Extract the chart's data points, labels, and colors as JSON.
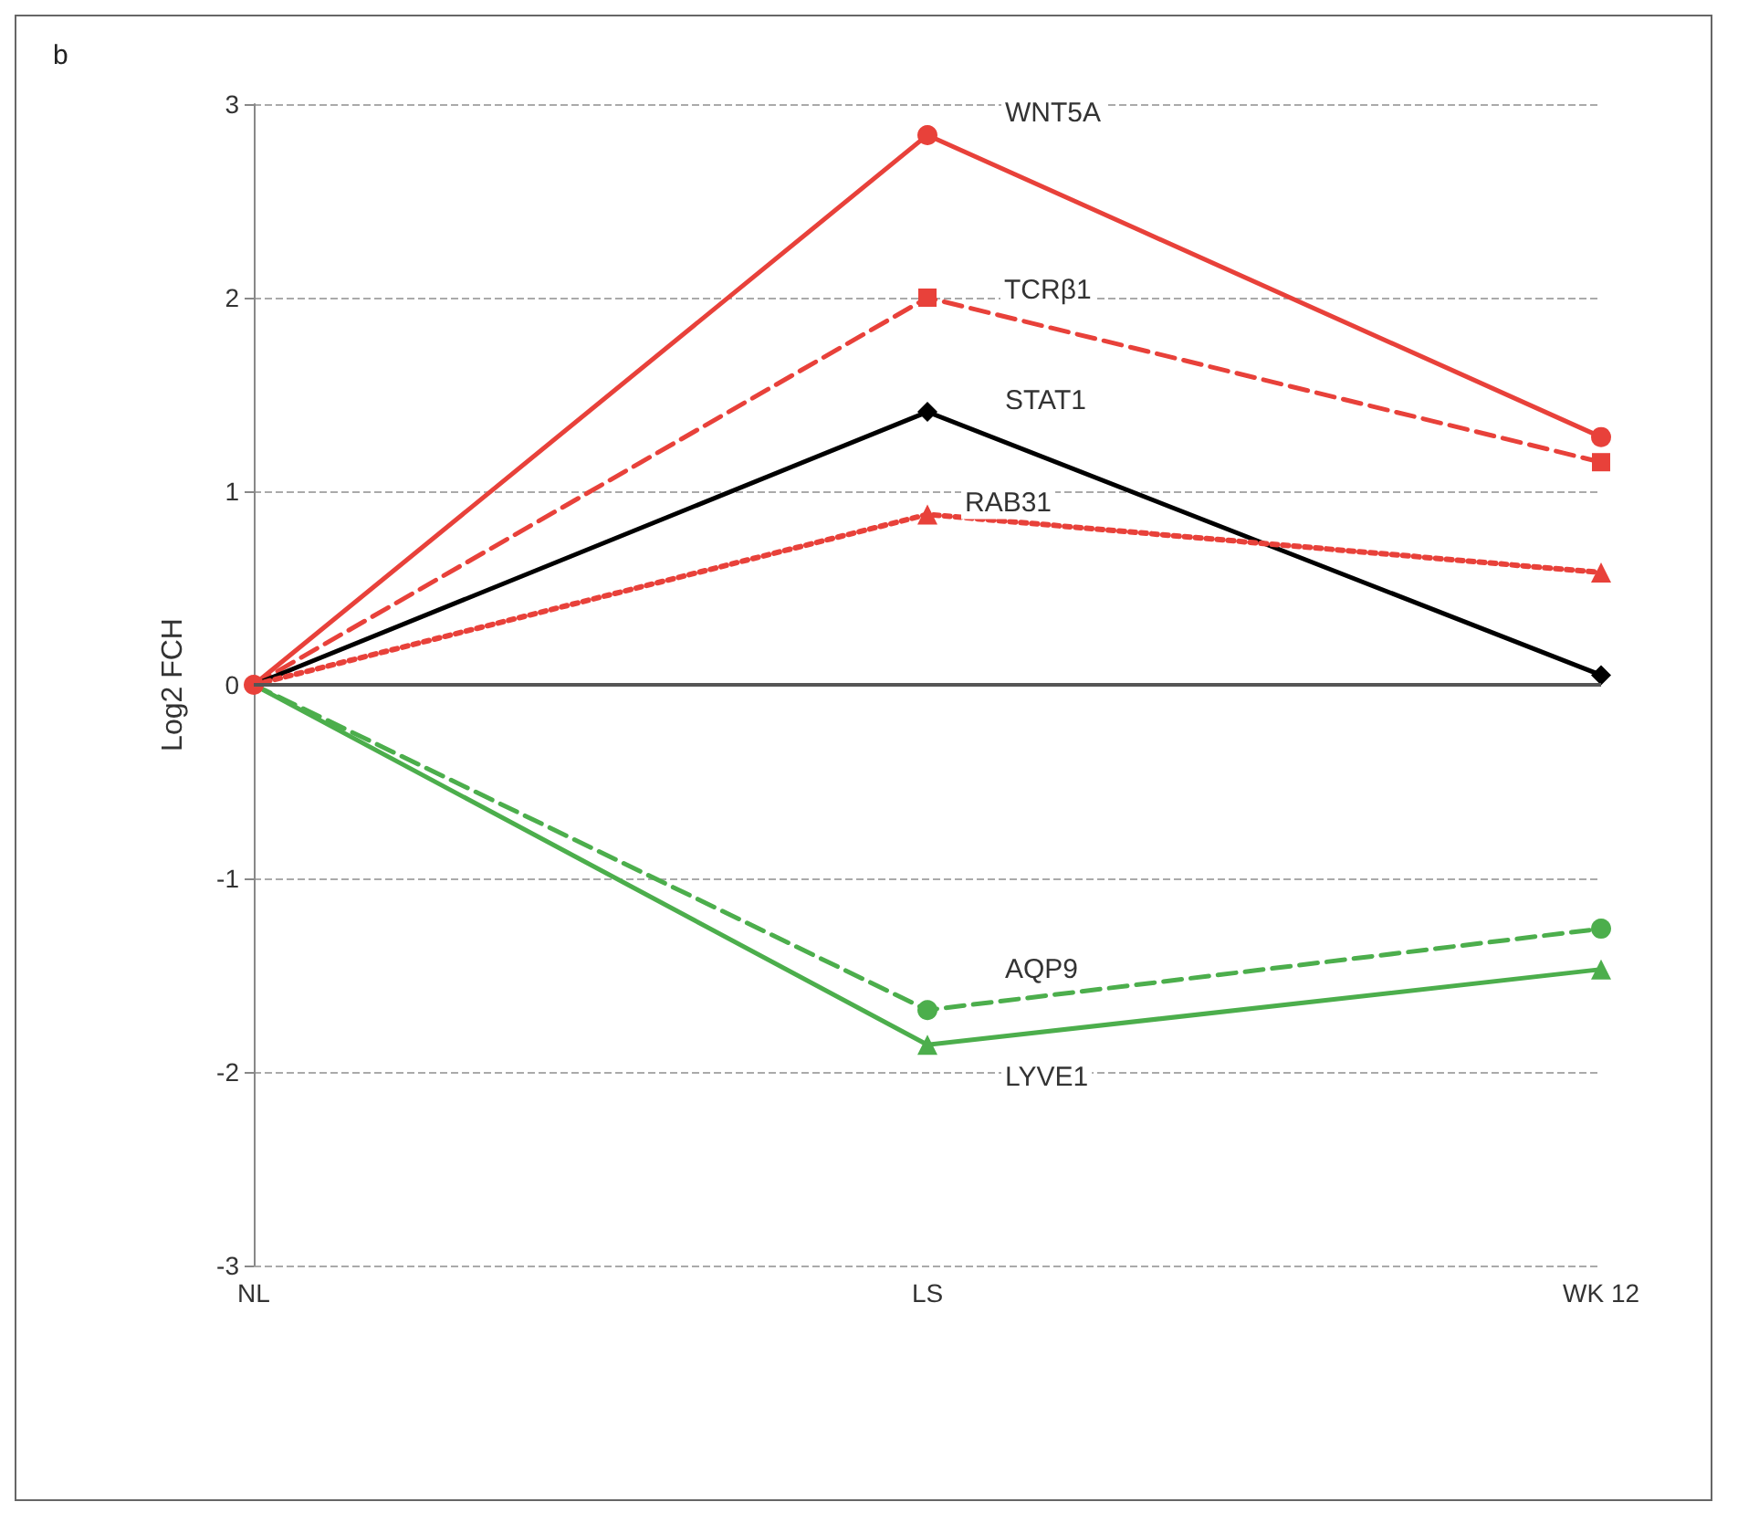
{
  "chart_data": {
    "type": "line",
    "ylabel": "Log2 FCH",
    "annotations": [
      "b"
    ],
    "categories": [
      "NL",
      "LS",
      "WK 12"
    ],
    "ylim": [
      -3,
      3
    ],
    "yticks": [
      -3,
      -2,
      -1,
      0,
      1,
      2,
      3
    ],
    "grid": "y",
    "legend": false,
    "series": [
      {
        "name": "WNT5A",
        "color": "#e8413a",
        "values": [
          0,
          2.84,
          1.28
        ],
        "marker": "circle",
        "line_style": "solid"
      },
      {
        "name": "TCRβ1",
        "color": "#e8413a",
        "values": [
          0,
          2.0,
          1.15
        ],
        "marker": "square",
        "line_style": "dashed"
      },
      {
        "name": "STAT1",
        "color": "#000000",
        "values": [
          0,
          1.41,
          0.05
        ],
        "marker": "diamond",
        "line_style": "solid"
      },
      {
        "name": "RAB31",
        "color": "#e8413a",
        "values": [
          0,
          0.88,
          0.58
        ],
        "marker": "triangle",
        "line_style": "dotted"
      },
      {
        "name": "AQP9",
        "color": "#4cae4c",
        "values": [
          0,
          -1.68,
          -1.26
        ],
        "marker": "circle",
        "line_style": "dashed"
      },
      {
        "name": "LYVE1",
        "color": "#4cae4c",
        "values": [
          0,
          -1.86,
          -1.47
        ],
        "marker": "triangle",
        "line_style": "solid"
      }
    ]
  }
}
